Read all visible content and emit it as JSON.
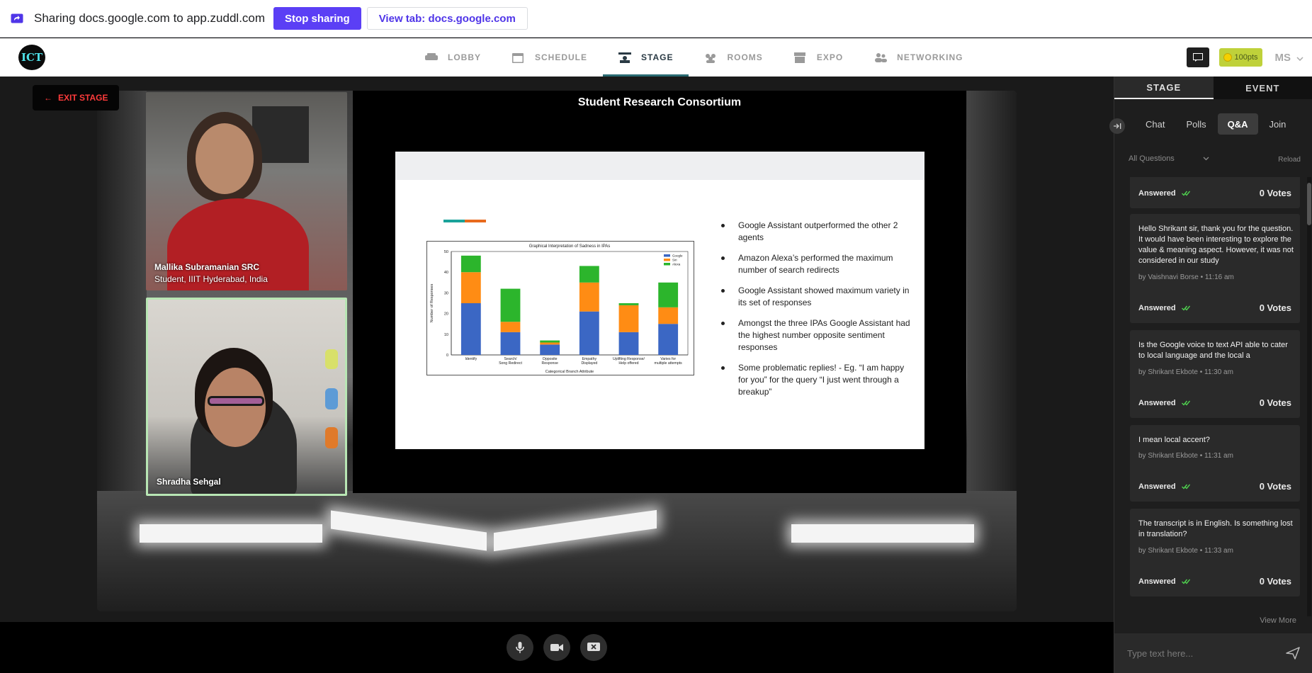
{
  "share_bar": {
    "text": "Sharing docs.google.com to app.zuddl.com",
    "stop_label": "Stop sharing",
    "view_tab_label": "View tab: docs.google.com"
  },
  "nav": {
    "logo_text": "ICT",
    "items": [
      {
        "label": "LOBBY",
        "icon": "sofa-icon"
      },
      {
        "label": "SCHEDULE",
        "icon": "calendar-icon"
      },
      {
        "label": "STAGE",
        "icon": "stage-icon",
        "active": true
      },
      {
        "label": "ROOMS",
        "icon": "people-group-icon"
      },
      {
        "label": "EXPO",
        "icon": "booth-icon"
      },
      {
        "label": "NETWORKING",
        "icon": "networking-icon"
      }
    ],
    "points": "100pts",
    "user_initials": "MS"
  },
  "stage": {
    "exit_label": "EXIT STAGE",
    "speakers": [
      {
        "name": "Mallika Subramanian SRC",
        "subtitle": "Student, IIIT Hyderabad, India"
      },
      {
        "name": "Shradha Sehgal",
        "subtitle": ""
      }
    ],
    "slide_window_title": "Student Research Consortium",
    "bullets": [
      "Google Assistant outperformed the other 2 agents",
      "Amazon Alexa’s performed the maximum number of search redirects",
      "Google Assistant showed maximum variety in its set of responses",
      "Amongst the three IPAs Google Assistant had the highest number opposite sentiment responses",
      "Some problematic replies! - Eg. “I am happy for you” for the query “I just went through a breakup”"
    ]
  },
  "chart_data": {
    "type": "bar",
    "stacked": true,
    "title": "Graphical Interpretation of Sadness in IPAs",
    "xlabel": "Categorical Branch Attribute",
    "ylabel": "Number of Responses",
    "ylim": [
      0,
      50
    ],
    "yticks": [
      0,
      10,
      20,
      30,
      40,
      50
    ],
    "categories": [
      "Identify",
      "Search/\nSong Redirect",
      "Opposite\nResponse",
      "Empathy\nDisplayed",
      "Uplifting Response/\nHelp offered",
      "Varies for\nmultiple attempts"
    ],
    "series": [
      {
        "name": "Google",
        "color": "#3b67c4",
        "values": [
          25,
          11,
          5,
          21,
          11,
          15
        ]
      },
      {
        "name": "Siri",
        "color": "#ff8c14",
        "values": [
          15,
          5,
          1,
          14,
          13,
          8
        ]
      },
      {
        "name": "Alexa",
        "color": "#2cb52c",
        "values": [
          8,
          16,
          1,
          8,
          1,
          12
        ]
      }
    ],
    "legend": "top-right"
  },
  "sidebar": {
    "tabs": [
      {
        "label": "STAGE",
        "active": true
      },
      {
        "label": "EVENT",
        "active": false
      }
    ],
    "subtabs": [
      {
        "label": "Chat"
      },
      {
        "label": "Polls"
      },
      {
        "label": "Q&A",
        "active": true
      },
      {
        "label": "Join"
      }
    ],
    "filter_label": "All Questions",
    "reload_label": "Reload",
    "questions": [
      {
        "text": "",
        "meta": "",
        "status": "Answered",
        "votes": "0 Votes"
      },
      {
        "text": "Hello Shrikant sir, thank you for the question. It would have been interesting to explore the value & meaning aspect. However, it was not considered in our study",
        "meta": "by Vaishnavi Borse • 11:16 am",
        "status": "Answered",
        "votes": "0 Votes"
      },
      {
        "text": "Is the Google voice to text API able to cater to local language and the local a",
        "meta": "by Shrikant Ekbote • 11:30 am",
        "status": "Answered",
        "votes": "0 Votes"
      },
      {
        "text": "I mean local accent?",
        "meta": "by Shrikant Ekbote • 11:31 am",
        "status": "Answered",
        "votes": "0 Votes"
      },
      {
        "text": "The transcript is in English. Is something lost in translation?",
        "meta": "by Shrikant Ekbote • 11:33 am",
        "status": "Answered",
        "votes": "0 Votes"
      }
    ],
    "view_more_label": "View More",
    "input_placeholder": "Type text here..."
  }
}
